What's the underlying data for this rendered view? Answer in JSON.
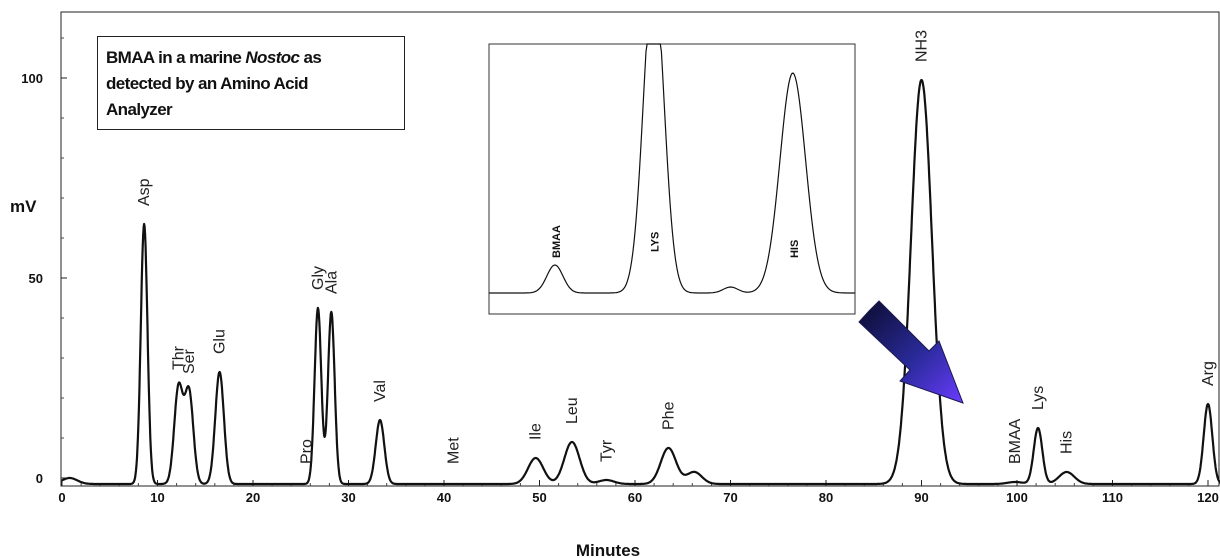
{
  "annotation": {
    "line1_pre": "BMAA in a marine ",
    "line1_italic": "Nostoc",
    "line1_post": " as",
    "line2": "detected by an Amino Acid",
    "line3": "Analyzer"
  },
  "chart_data": {
    "type": "line",
    "xlabel": "Minutes",
    "ylabel": "mV",
    "xlim": [
      0,
      122
    ],
    "ylim": [
      -5,
      115
    ],
    "xticks": [
      0,
      10,
      20,
      30,
      40,
      50,
      60,
      70,
      80,
      90,
      100,
      110,
      120
    ],
    "yticks": [
      0,
      50,
      100
    ],
    "grid": false,
    "baseline": -1.5,
    "peaks": [
      {
        "label": "",
        "x": 0.8,
        "y": 1.5
      },
      {
        "label": "Asp",
        "x": 8.6,
        "y": 65
      },
      {
        "label": "Thr",
        "x": 12.2,
        "y": 24
      },
      {
        "label": "Ser",
        "x": 13.3,
        "y": 23
      },
      {
        "label": "Glu",
        "x": 16.5,
        "y": 28
      },
      {
        "label": "Pro",
        "x": 25.6,
        "y": 0
      },
      {
        "label": "Gly",
        "x": 26.8,
        "y": 44
      },
      {
        "label": "Ala",
        "x": 28.2,
        "y": 43
      },
      {
        "label": "Val",
        "x": 33.3,
        "y": 16
      },
      {
        "label": "Met",
        "x": 41.0,
        "y": 0
      },
      {
        "label": "Ile",
        "x": 49.6,
        "y": 6.5
      },
      {
        "label": "Leu",
        "x": 53.4,
        "y": 10.5
      },
      {
        "label": "Tyr",
        "x": 57.0,
        "y": 1
      },
      {
        "label": "Phe",
        "x": 63.5,
        "y": 9
      },
      {
        "label": "",
        "x": 66.2,
        "y": 3
      },
      {
        "label": "NH3",
        "x": 90.0,
        "y": 101
      },
      {
        "label": "BMAA",
        "x": 99.8,
        "y": 0.5
      },
      {
        "label": "Lys",
        "x": 102.2,
        "y": 14
      },
      {
        "label": "His",
        "x": 105.2,
        "y": 3
      },
      {
        "label": "Arg",
        "x": 120.0,
        "y": 20
      }
    ],
    "inset": {
      "peaks": [
        {
          "label": "BMAA",
          "x": 0.18
        },
        {
          "label": "LYS",
          "x": 0.45
        },
        {
          "label": "HIS",
          "x": 0.83
        }
      ]
    },
    "arrow": {
      "points_to": "BMAA",
      "color": "#3a2fd0"
    }
  }
}
